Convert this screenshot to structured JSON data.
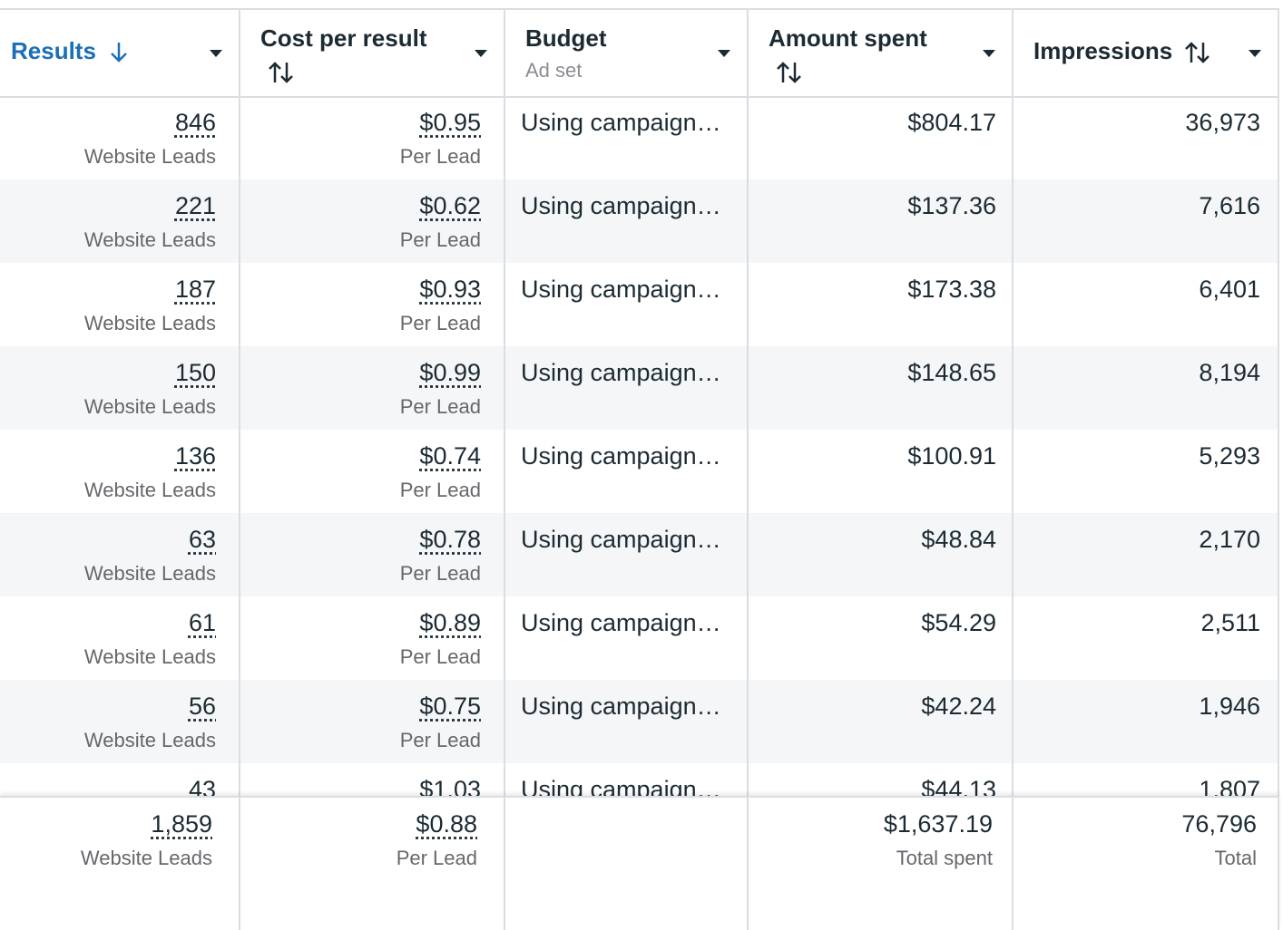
{
  "header": {
    "columns": [
      {
        "title": "Results"
      },
      {
        "title": "Cost per result"
      },
      {
        "title": "Budget",
        "subtitle": "Ad set"
      },
      {
        "title": "Amount spent"
      },
      {
        "title": "Impressions"
      }
    ]
  },
  "rows": [
    {
      "results": "846",
      "results_label": "Website Leads",
      "cost": "$0.95",
      "cost_label": "Per Lead",
      "budget": "Using campaign…",
      "amount": "$804.17",
      "impressions": "36,973"
    },
    {
      "results": "221",
      "results_label": "Website Leads",
      "cost": "$0.62",
      "cost_label": "Per Lead",
      "budget": "Using campaign…",
      "amount": "$137.36",
      "impressions": "7,616"
    },
    {
      "results": "187",
      "results_label": "Website Leads",
      "cost": "$0.93",
      "cost_label": "Per Lead",
      "budget": "Using campaign…",
      "amount": "$173.38",
      "impressions": "6,401"
    },
    {
      "results": "150",
      "results_label": "Website Leads",
      "cost": "$0.99",
      "cost_label": "Per Lead",
      "budget": "Using campaign…",
      "amount": "$148.65",
      "impressions": "8,194"
    },
    {
      "results": "136",
      "results_label": "Website Leads",
      "cost": "$0.74",
      "cost_label": "Per Lead",
      "budget": "Using campaign…",
      "amount": "$100.91",
      "impressions": "5,293"
    },
    {
      "results": "63",
      "results_label": "Website Leads",
      "cost": "$0.78",
      "cost_label": "Per Lead",
      "budget": "Using campaign…",
      "amount": "$48.84",
      "impressions": "2,170"
    },
    {
      "results": "61",
      "results_label": "Website Leads",
      "cost": "$0.89",
      "cost_label": "Per Lead",
      "budget": "Using campaign…",
      "amount": "$54.29",
      "impressions": "2,511"
    },
    {
      "results": "56",
      "results_label": "Website Leads",
      "cost": "$0.75",
      "cost_label": "Per Lead",
      "budget": "Using campaign…",
      "amount": "$42.24",
      "impressions": "1,946"
    },
    {
      "results": "43",
      "cost": "$1.03",
      "budget": "Using campaign…",
      "amount": "$44.13",
      "impressions": "1,807"
    }
  ],
  "footer": {
    "results": "1,859",
    "results_label": "Website Leads",
    "cost": "$0.88",
    "cost_label": "Per Lead",
    "amount": "$1,637.19",
    "amount_label": "Total spent",
    "impressions": "76,796",
    "impressions_label": "Total"
  }
}
